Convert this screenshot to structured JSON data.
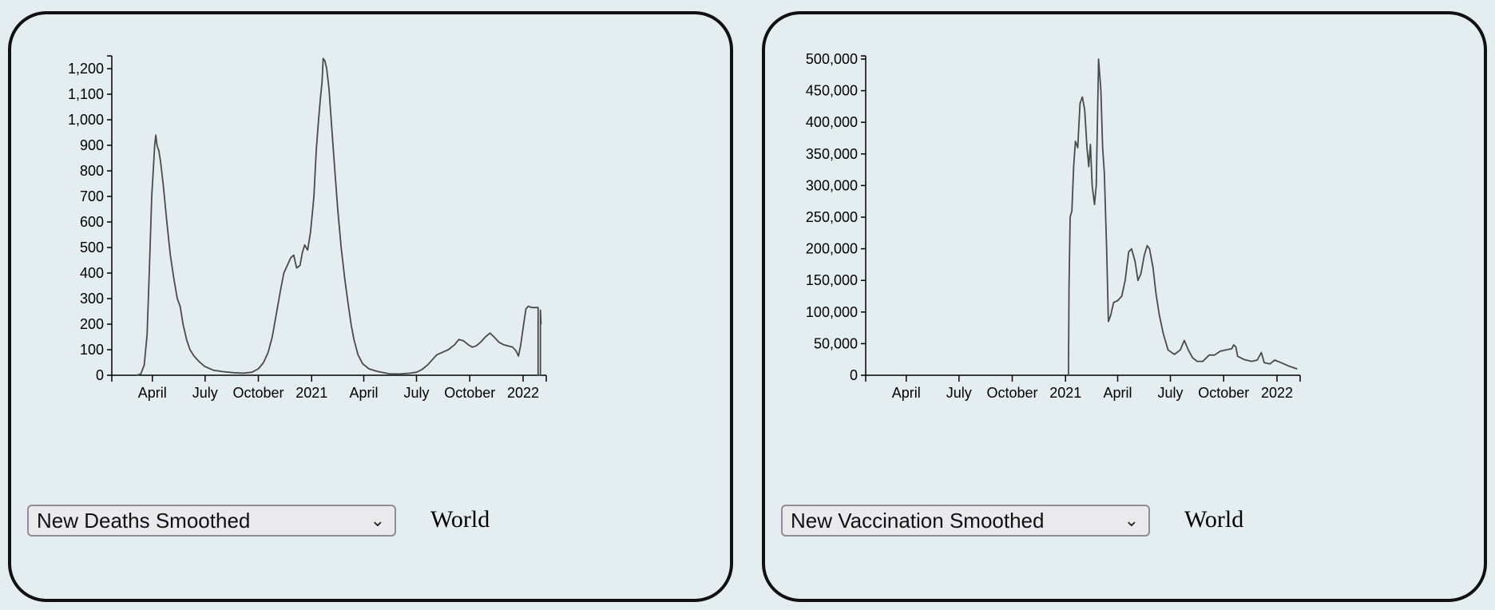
{
  "panels": [
    {
      "selector": {
        "value": "New Deaths Smoothed"
      },
      "location": "World"
    },
    {
      "selector": {
        "value": "New Vaccination Smoothed"
      },
      "location": "World"
    }
  ],
  "chart_data": [
    {
      "type": "line",
      "title": "",
      "xlabel": "",
      "ylabel": "",
      "x_range": [
        "2020-01-22",
        "2022-02-10"
      ],
      "ylim": [
        0,
        1250
      ],
      "y_ticks": [
        0,
        100,
        200,
        300,
        400,
        500,
        600,
        700,
        800,
        900,
        1000,
        1100,
        1200
      ],
      "y_tick_labels": [
        "0",
        "100",
        "200",
        "300",
        "400",
        "500",
        "600",
        "700",
        "800",
        "900",
        "1,000",
        "1,100",
        "1,200"
      ],
      "x_ticks": [
        "2020-04-01",
        "2020-07-01",
        "2020-10-01",
        "2021-01-01",
        "2021-04-01",
        "2021-07-01",
        "2021-10-01",
        "2022-01-01"
      ],
      "x_tick_labels": [
        "April",
        "July",
        "October",
        "2021",
        "April",
        "July",
        "October",
        "2022"
      ],
      "grid": false,
      "series": [
        {
          "points": [
            [
              "2020-03-05",
              0
            ],
            [
              "2020-03-12",
              5
            ],
            [
              "2020-03-18",
              40
            ],
            [
              "2020-03-23",
              160
            ],
            [
              "2020-03-27",
              420
            ],
            [
              "2020-03-31",
              700
            ],
            [
              "2020-04-05",
              900
            ],
            [
              "2020-04-07",
              940
            ],
            [
              "2020-04-09",
              900
            ],
            [
              "2020-04-12",
              880
            ],
            [
              "2020-04-15",
              840
            ],
            [
              "2020-04-20",
              740
            ],
            [
              "2020-04-26",
              600
            ],
            [
              "2020-05-02",
              470
            ],
            [
              "2020-05-08",
              380
            ],
            [
              "2020-05-14",
              300
            ],
            [
              "2020-05-19",
              270
            ],
            [
              "2020-05-24",
              200
            ],
            [
              "2020-05-30",
              140
            ],
            [
              "2020-06-05",
              100
            ],
            [
              "2020-06-12",
              75
            ],
            [
              "2020-06-20",
              55
            ],
            [
              "2020-06-30",
              35
            ],
            [
              "2020-07-15",
              20
            ],
            [
              "2020-08-01",
              14
            ],
            [
              "2020-08-20",
              10
            ],
            [
              "2020-09-05",
              8
            ],
            [
              "2020-09-20",
              12
            ],
            [
              "2020-10-01",
              25
            ],
            [
              "2020-10-10",
              50
            ],
            [
              "2020-10-18",
              90
            ],
            [
              "2020-10-25",
              150
            ],
            [
              "2020-11-01",
              240
            ],
            [
              "2020-11-08",
              330
            ],
            [
              "2020-11-14",
              400
            ],
            [
              "2020-11-20",
              430
            ],
            [
              "2020-11-26",
              460
            ],
            [
              "2020-12-01",
              470
            ],
            [
              "2020-12-06",
              420
            ],
            [
              "2020-12-12",
              430
            ],
            [
              "2020-12-16",
              480
            ],
            [
              "2020-12-20",
              510
            ],
            [
              "2020-12-25",
              490
            ],
            [
              "2020-12-30",
              560
            ],
            [
              "2021-01-05",
              700
            ],
            [
              "2021-01-09",
              880
            ],
            [
              "2021-01-13",
              1000
            ],
            [
              "2021-01-16",
              1080
            ],
            [
              "2021-01-19",
              1150
            ],
            [
              "2021-01-21",
              1240
            ],
            [
              "2021-01-24",
              1230
            ],
            [
              "2021-01-27",
              1200
            ],
            [
              "2021-01-31",
              1120
            ],
            [
              "2021-02-05",
              960
            ],
            [
              "2021-02-10",
              800
            ],
            [
              "2021-02-15",
              650
            ],
            [
              "2021-02-21",
              500
            ],
            [
              "2021-02-27",
              380
            ],
            [
              "2021-03-05",
              280
            ],
            [
              "2021-03-10",
              200
            ],
            [
              "2021-03-15",
              140
            ],
            [
              "2021-03-22",
              80
            ],
            [
              "2021-03-30",
              45
            ],
            [
              "2021-04-10",
              25
            ],
            [
              "2021-04-25",
              15
            ],
            [
              "2021-05-15",
              6
            ],
            [
              "2021-06-01",
              5
            ],
            [
              "2021-06-20",
              8
            ],
            [
              "2021-07-01",
              12
            ],
            [
              "2021-07-10",
              22
            ],
            [
              "2021-07-20",
              40
            ],
            [
              "2021-07-28",
              60
            ],
            [
              "2021-08-05",
              80
            ],
            [
              "2021-08-15",
              90
            ],
            [
              "2021-08-25",
              100
            ],
            [
              "2021-09-05",
              120
            ],
            [
              "2021-09-12",
              140
            ],
            [
              "2021-09-20",
              135
            ],
            [
              "2021-09-28",
              120
            ],
            [
              "2021-10-05",
              110
            ],
            [
              "2021-10-12",
              115
            ],
            [
              "2021-10-20",
              130
            ],
            [
              "2021-10-28",
              150
            ],
            [
              "2021-11-05",
              165
            ],
            [
              "2021-11-12",
              150
            ],
            [
              "2021-11-20",
              130
            ],
            [
              "2021-11-28",
              120
            ],
            [
              "2021-12-06",
              115
            ],
            [
              "2021-12-14",
              110
            ],
            [
              "2021-12-20",
              95
            ],
            [
              "2021-12-24",
              75
            ],
            [
              "2021-12-28",
              120
            ],
            [
              "2022-01-02",
              200
            ],
            [
              "2022-01-06",
              260
            ],
            [
              "2022-01-10",
              270
            ],
            [
              "2022-01-16",
              265
            ],
            [
              "2022-01-22",
              265
            ],
            [
              "2022-01-27",
              265
            ],
            [
              "2022-01-27",
              0
            ],
            [
              "2022-01-31",
              0
            ],
            [
              "2022-01-31",
              255
            ],
            [
              "2022-02-01",
              200
            ]
          ]
        }
      ]
    },
    {
      "type": "line",
      "title": "",
      "xlabel": "",
      "ylabel": "",
      "x_range": [
        "2020-01-22",
        "2022-02-10"
      ],
      "ylim": [
        0,
        505000
      ],
      "y_ticks": [
        0,
        50000,
        100000,
        150000,
        200000,
        250000,
        300000,
        350000,
        400000,
        450000,
        500000
      ],
      "y_tick_labels": [
        "0",
        "50,000",
        "100,000",
        "150,000",
        "200,000",
        "250,000",
        "300,000",
        "350,000",
        "400,000",
        "450,000",
        "500,000"
      ],
      "x_ticks": [
        "2020-04-01",
        "2020-07-01",
        "2020-10-01",
        "2021-01-01",
        "2021-04-01",
        "2021-07-01",
        "2021-10-01",
        "2022-01-01"
      ],
      "x_tick_labels": [
        "April",
        "July",
        "October",
        "2021",
        "April",
        "July",
        "October",
        "2022"
      ],
      "grid": false,
      "series": [
        {
          "points": [
            [
              "2021-01-06",
              0
            ],
            [
              "2021-01-07",
              140000
            ],
            [
              "2021-01-09",
              250000
            ],
            [
              "2021-01-12",
              260000
            ],
            [
              "2021-01-15",
              330000
            ],
            [
              "2021-01-18",
              370000
            ],
            [
              "2021-01-22",
              360000
            ],
            [
              "2021-01-26",
              430000
            ],
            [
              "2021-01-30",
              440000
            ],
            [
              "2021-02-03",
              420000
            ],
            [
              "2021-02-07",
              360000
            ],
            [
              "2021-02-10",
              330000
            ],
            [
              "2021-02-13",
              365000
            ],
            [
              "2021-02-16",
              300000
            ],
            [
              "2021-02-20",
              270000
            ],
            [
              "2021-02-23",
              300000
            ],
            [
              "2021-02-27",
              500000
            ],
            [
              "2021-03-03",
              450000
            ],
            [
              "2021-03-06",
              360000
            ],
            [
              "2021-03-09",
              320000
            ],
            [
              "2021-03-13",
              200000
            ],
            [
              "2021-03-16",
              85000
            ],
            [
              "2021-03-20",
              95000
            ],
            [
              "2021-03-25",
              115000
            ],
            [
              "2021-04-01",
              118000
            ],
            [
              "2021-04-08",
              125000
            ],
            [
              "2021-04-14",
              150000
            ],
            [
              "2021-04-20",
              195000
            ],
            [
              "2021-04-25",
              200000
            ],
            [
              "2021-05-01",
              180000
            ],
            [
              "2021-05-06",
              150000
            ],
            [
              "2021-05-11",
              160000
            ],
            [
              "2021-05-17",
              190000
            ],
            [
              "2021-05-22",
              205000
            ],
            [
              "2021-05-26",
              200000
            ],
            [
              "2021-06-01",
              170000
            ],
            [
              "2021-06-06",
              130000
            ],
            [
              "2021-06-12",
              95000
            ],
            [
              "2021-06-19",
              65000
            ],
            [
              "2021-06-27",
              40000
            ],
            [
              "2021-07-08",
              33000
            ],
            [
              "2021-07-18",
              40000
            ],
            [
              "2021-07-25",
              55000
            ],
            [
              "2021-08-01",
              40000
            ],
            [
              "2021-08-08",
              28000
            ],
            [
              "2021-08-16",
              22000
            ],
            [
              "2021-08-26",
              22000
            ],
            [
              "2021-09-06",
              32000
            ],
            [
              "2021-09-15",
              32000
            ],
            [
              "2021-09-25",
              38000
            ],
            [
              "2021-10-05",
              40000
            ],
            [
              "2021-10-15",
              42000
            ],
            [
              "2021-10-18",
              48000
            ],
            [
              "2021-10-22",
              45000
            ],
            [
              "2021-10-25",
              30000
            ],
            [
              "2021-11-05",
              25000
            ],
            [
              "2021-11-18",
              22000
            ],
            [
              "2021-11-28",
              24000
            ],
            [
              "2021-12-05",
              36000
            ],
            [
              "2021-12-10",
              20000
            ],
            [
              "2021-12-20",
              18000
            ],
            [
              "2021-12-28",
              24000
            ],
            [
              "2022-01-08",
              20000
            ],
            [
              "2022-01-20",
              15000
            ],
            [
              "2022-02-05",
              10000
            ]
          ]
        }
      ]
    }
  ]
}
